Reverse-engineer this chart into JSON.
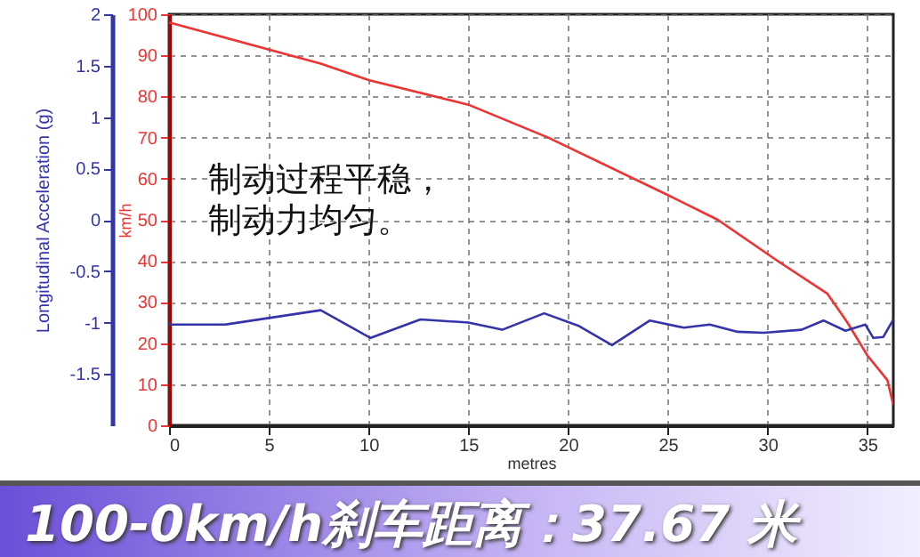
{
  "chart_data": {
    "type": "line",
    "title": "100-0km/h刹车距离：37.67 米",
    "xlabel": "metres",
    "ylabel": "km/h",
    "y2label": "Longitudinal Acceleration (g)",
    "annotations": [
      "制动过程平稳，制动力均匀。"
    ],
    "xlim": [
      0,
      36.3
    ],
    "xticks": [
      0,
      5,
      10,
      15,
      20,
      25,
      30,
      35
    ],
    "ylim": [
      0,
      100
    ],
    "yticks": [
      0,
      10,
      20,
      30,
      40,
      50,
      60,
      70,
      80,
      90,
      100
    ],
    "y2lim": [
      -2,
      2
    ],
    "y2ticks": [
      -1.5,
      -1,
      -0.5,
      0,
      0.5,
      1,
      1.5,
      2
    ],
    "grid": true,
    "series": [
      {
        "color": "#ee3333",
        "x": [
          0,
          7.6,
          10,
          15,
          19,
          25,
          27.5,
          30.5,
          33,
          34,
          35,
          36,
          36.3
        ],
        "values": [
          98,
          88,
          84,
          78,
          70,
          56,
          50,
          40,
          32,
          25,
          17,
          11,
          5
        ]
      },
      {
        "color": "#3333aa",
        "axis": "y2",
        "x": [
          0,
          2.8,
          7.6,
          10.1,
          12.6,
          15,
          16.7,
          18.8,
          20.5,
          22.2,
          24.1,
          25.8,
          27.1,
          28.5,
          29.8,
          31.7,
          32.8,
          33.9,
          34.9,
          35.3,
          35.8,
          36.3
        ],
        "values": [
          -1.02,
          -1.02,
          -0.88,
          -1.15,
          -0.97,
          -1,
          -1.07,
          -0.91,
          -1.03,
          -1.22,
          -0.98,
          -1.05,
          -1.02,
          -1.09,
          -1.1,
          -1.07,
          -0.98,
          -1.08,
          -1.02,
          -1.15,
          -1.14,
          -0.97
        ]
      }
    ]
  }
}
